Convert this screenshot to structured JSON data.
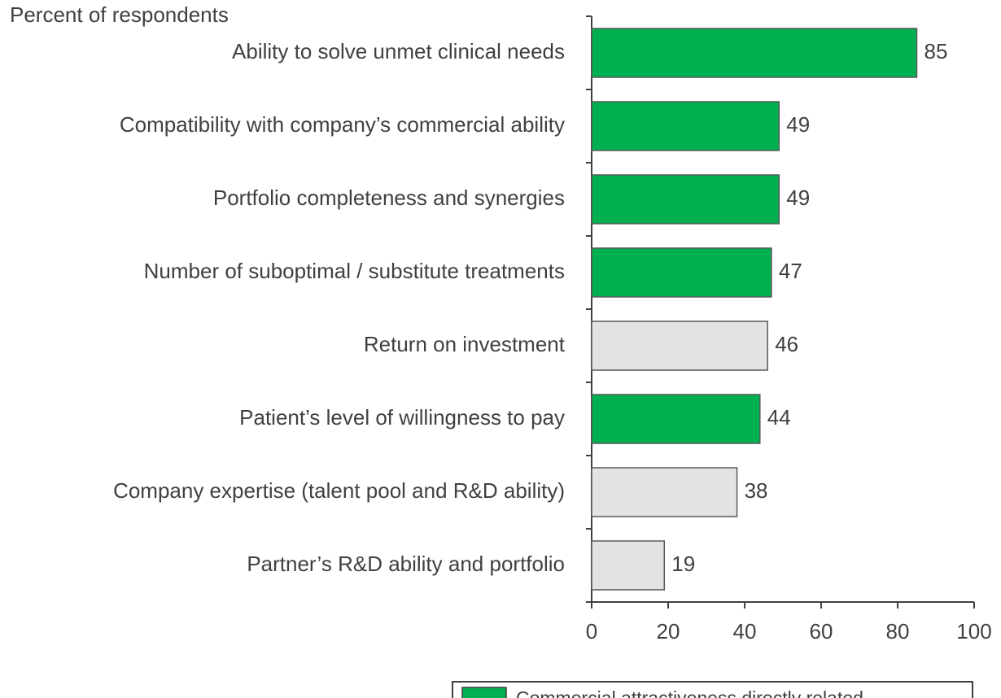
{
  "chart_data": {
    "type": "bar",
    "orientation": "horizontal",
    "subtitle": "Percent of respondents",
    "categories": [
      "Ability to solve unmet clinical needs",
      "Compatibility with company’s commercial ability",
      "Portfolio completeness and synergies",
      "Number of suboptimal / substitute treatments",
      "Return on investment",
      "Patient’s level of willingness to pay",
      "Company expertise (talent pool and R&D ability)",
      "Partner’s R&D ability and portfolio"
    ],
    "values": [
      85,
      49,
      49,
      47,
      46,
      44,
      38,
      19
    ],
    "colors": [
      "#00b050",
      "#00b050",
      "#00b050",
      "#00b050",
      "#e1e4e3",
      "#00b050",
      "#e1e4e3",
      "#e1e4e3"
    ],
    "xlim": [
      0,
      100
    ],
    "xticks": [
      0,
      20,
      40,
      60,
      80,
      100
    ],
    "legend": {
      "name": "Commercial attractiveness directly related",
      "color": "#00b050"
    }
  }
}
